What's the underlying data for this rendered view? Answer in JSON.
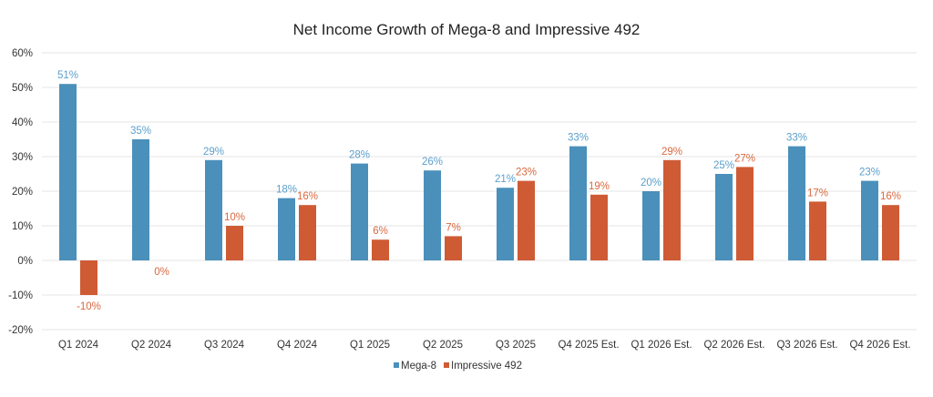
{
  "chart_data": {
    "type": "bar",
    "title": "Net Income Growth of Mega-8 and Impressive 492",
    "xlabel": "",
    "ylabel": "",
    "ylim": [
      -20,
      60
    ],
    "yticks": [
      "-20%",
      "-10%",
      "0%",
      "10%",
      "20%",
      "30%",
      "40%",
      "50%",
      "60%"
    ],
    "grid": true,
    "legend_position": "bottom",
    "categories": [
      "Q1 2024",
      "Q2 2024",
      "Q3 2024",
      "Q4 2024",
      "Q1 2025",
      "Q2 2025",
      "Q3 2025",
      "Q4 2025 Est.",
      "Q1 2026 Est.",
      "Q2 2026 Est.",
      "Q3 2026 Est.",
      "Q4 2026 Est."
    ],
    "series": [
      {
        "name": "Mega-8",
        "color": "#4a90bb",
        "label_color": "#5a9fcc",
        "values": [
          51,
          35,
          29,
          18,
          28,
          26,
          21,
          33,
          20,
          25,
          33,
          23
        ]
      },
      {
        "name": "Impressive 492",
        "color": "#cf5b35",
        "label_color": "#d9683f",
        "values": [
          -10,
          0,
          10,
          16,
          6,
          7,
          23,
          19,
          29,
          27,
          17,
          16
        ]
      }
    ]
  }
}
